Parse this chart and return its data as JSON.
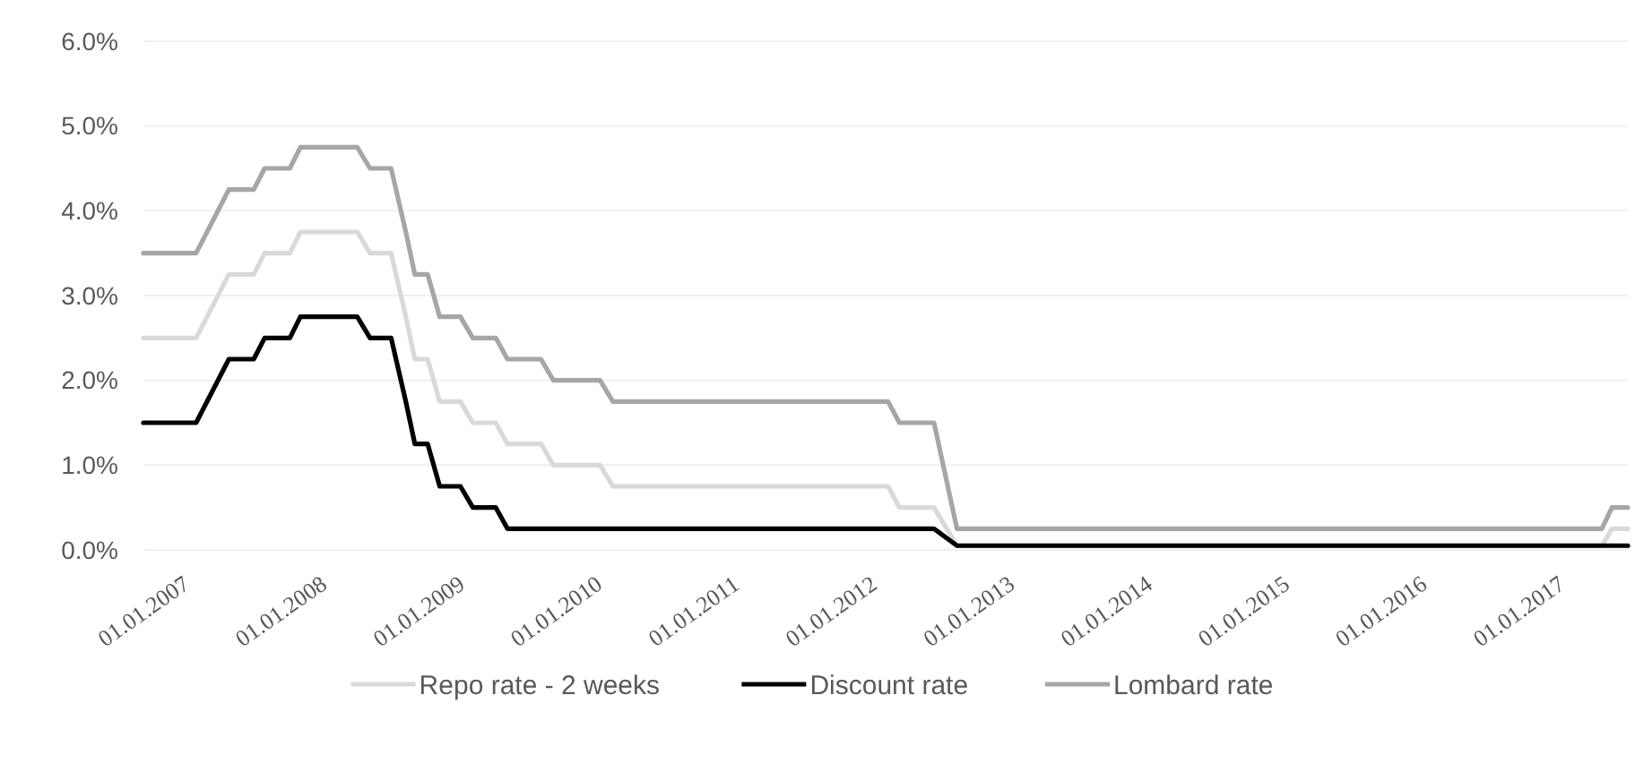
{
  "chart_data": {
    "type": "line",
    "ylim": [
      0,
      6
    ],
    "yticks": [
      {
        "value": 0,
        "label": "0.0%"
      },
      {
        "value": 1,
        "label": "1.0%"
      },
      {
        "value": 2,
        "label": "2.0%"
      },
      {
        "value": 3,
        "label": "3.0%"
      },
      {
        "value": 4,
        "label": "4.0%"
      },
      {
        "value": 5,
        "label": "5.0%"
      },
      {
        "value": 6,
        "label": "6.0%"
      }
    ],
    "xlim": [
      "2007-01-01",
      "2017-10-18"
    ],
    "xticks": [
      {
        "value": "2007-01-01",
        "label": "01.01.2007"
      },
      {
        "value": "2008-01-01",
        "label": "01.01.2008"
      },
      {
        "value": "2009-01-01",
        "label": "01.01.2009"
      },
      {
        "value": "2010-01-01",
        "label": "01.01.2010"
      },
      {
        "value": "2011-01-01",
        "label": "01.01.2011"
      },
      {
        "value": "2012-01-01",
        "label": "01.01.2012"
      },
      {
        "value": "2013-01-01",
        "label": "01.01.2013"
      },
      {
        "value": "2014-01-01",
        "label": "01.01.2014"
      },
      {
        "value": "2015-01-01",
        "label": "01.01.2015"
      },
      {
        "value": "2016-01-01",
        "label": "01.01.2016"
      },
      {
        "value": "2017-01-01",
        "label": "01.01.2017"
      }
    ],
    "grid": "y",
    "legend": "bottom",
    "marker": "none",
    "line_style": "solid",
    "series": [
      {
        "name": "Repo rate - 2 weeks",
        "color": "#d9d9d9",
        "x": [
          "2007-01-01",
          "2007-05-21",
          "2007-08-16",
          "2007-10-21",
          "2007-11-19",
          "2008-01-25",
          "2008-02-22",
          "2008-07-22",
          "2008-08-25",
          "2008-10-20",
          "2008-11-28",
          "2008-12-22",
          "2009-01-25",
          "2009-02-26",
          "2009-04-22",
          "2009-05-25",
          "2009-07-25",
          "2009-08-25",
          "2009-11-22",
          "2009-12-25",
          "2010-04-28",
          "2010-06-01",
          "2012-06-01",
          "2012-07-01",
          "2012-10-01",
          "2012-12-01",
          "2017-08-10",
          "2017-09-06",
          "2017-10-18"
        ],
        "values": [
          2.5,
          2.5,
          3.25,
          3.25,
          3.5,
          3.5,
          3.75,
          3.75,
          3.5,
          3.5,
          2.75,
          2.25,
          2.25,
          1.75,
          1.75,
          1.5,
          1.5,
          1.25,
          1.25,
          1.0,
          1.0,
          0.75,
          0.75,
          0.5,
          0.5,
          0.05,
          0.05,
          0.25,
          0.25
        ]
      },
      {
        "name": "Discount rate",
        "color": "#000000",
        "x": [
          "2007-01-01",
          "2007-05-21",
          "2007-08-16",
          "2007-10-21",
          "2007-11-19",
          "2008-01-25",
          "2008-02-22",
          "2008-07-22",
          "2008-08-25",
          "2008-10-20",
          "2008-11-28",
          "2008-12-22",
          "2009-01-25",
          "2009-02-26",
          "2009-04-22",
          "2009-05-25",
          "2009-07-25",
          "2009-08-25",
          "2012-10-01",
          "2012-12-01",
          "2017-10-18"
        ],
        "values": [
          1.5,
          1.5,
          2.25,
          2.25,
          2.5,
          2.5,
          2.75,
          2.75,
          2.5,
          2.5,
          1.75,
          1.25,
          1.25,
          0.75,
          0.75,
          0.5,
          0.5,
          0.25,
          0.25,
          0.05,
          0.05
        ]
      },
      {
        "name": "Lombard rate",
        "color": "#a6a6a6",
        "x": [
          "2007-01-01",
          "2007-05-21",
          "2007-08-16",
          "2007-10-21",
          "2007-11-19",
          "2008-01-25",
          "2008-02-22",
          "2008-07-22",
          "2008-08-25",
          "2008-10-20",
          "2008-11-28",
          "2008-12-22",
          "2009-01-25",
          "2009-02-26",
          "2009-04-22",
          "2009-05-25",
          "2009-07-25",
          "2009-08-25",
          "2009-11-22",
          "2009-12-25",
          "2010-04-28",
          "2010-06-01",
          "2012-06-01",
          "2012-07-01",
          "2012-10-01",
          "2012-12-01",
          "2017-08-10",
          "2017-09-06",
          "2017-10-18"
        ],
        "values": [
          3.5,
          3.5,
          4.25,
          4.25,
          4.5,
          4.5,
          4.75,
          4.75,
          4.5,
          4.5,
          3.75,
          3.25,
          3.25,
          2.75,
          2.75,
          2.5,
          2.5,
          2.25,
          2.25,
          2.0,
          2.0,
          1.75,
          1.75,
          1.5,
          1.5,
          0.25,
          0.25,
          0.5,
          0.5
        ]
      }
    ]
  }
}
